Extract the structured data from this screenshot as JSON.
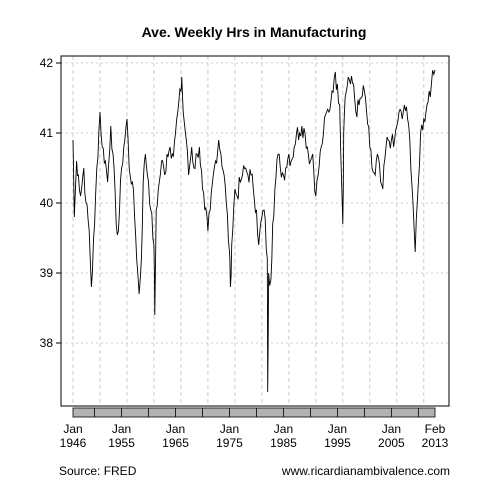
{
  "chart_data": {
    "type": "line",
    "title": "Ave. Weekly Hrs in Manufacturing",
    "xlabel": "",
    "ylabel": "",
    "x_range": [
      "1946-01",
      "2013-02"
    ],
    "ylim": [
      37.1,
      42.1
    ],
    "y_ticks": [
      "38",
      "39",
      "40",
      "41",
      "42"
    ],
    "y_tick_values": [
      38,
      39,
      40,
      41,
      42
    ],
    "x_ticks": [
      {
        "month": "Jan",
        "year": "1946",
        "x": "1946-01"
      },
      {
        "month": "Jan",
        "year": "1955",
        "x": "1955-01"
      },
      {
        "month": "Jan",
        "year": "1965",
        "x": "1965-01"
      },
      {
        "month": "Jan",
        "year": "1975",
        "x": "1975-01"
      },
      {
        "month": "Jan",
        "year": "1985",
        "x": "1985-01"
      },
      {
        "month": "Jan",
        "year": "1995",
        "x": "1995-01"
      },
      {
        "month": "Jan",
        "year": "2005",
        "x": "2005-01"
      },
      {
        "month": "Feb",
        "year": "2013",
        "x": "2013-02"
      }
    ],
    "grid": true,
    "series": [
      {
        "color": "#000000",
        "points": [
          [
            "1946-01",
            40.9
          ],
          [
            "1946-04",
            39.8
          ],
          [
            "1946-09",
            40.6
          ],
          [
            "1947-01",
            40.4
          ],
          [
            "1947-06",
            40.1
          ],
          [
            "1948-01",
            40.5
          ],
          [
            "1948-06",
            40.0
          ],
          [
            "1949-01",
            39.6
          ],
          [
            "1949-06",
            38.8
          ],
          [
            "1950-01",
            39.7
          ],
          [
            "1950-06",
            40.5
          ],
          [
            "1951-01",
            41.3
          ],
          [
            "1951-06",
            40.8
          ],
          [
            "1952-01",
            40.6
          ],
          [
            "1952-06",
            40.3
          ],
          [
            "1953-01",
            41.1
          ],
          [
            "1953-06",
            40.7
          ],
          [
            "1954-01",
            39.7
          ],
          [
            "1954-06",
            39.6
          ],
          [
            "1955-01",
            40.5
          ],
          [
            "1955-06",
            40.8
          ],
          [
            "1956-01",
            41.2
          ],
          [
            "1956-06",
            40.5
          ],
          [
            "1957-01",
            40.3
          ],
          [
            "1957-06",
            39.8
          ],
          [
            "1958-01",
            39.0
          ],
          [
            "1958-04",
            38.7
          ],
          [
            "1958-09",
            39.2
          ],
          [
            "1959-01",
            40.3
          ],
          [
            "1959-06",
            40.7
          ],
          [
            "1960-01",
            40.3
          ],
          [
            "1960-06",
            39.9
          ],
          [
            "1961-01",
            39.4
          ],
          [
            "1961-03",
            38.4
          ],
          [
            "1961-06",
            39.9
          ],
          [
            "1962-01",
            40.3
          ],
          [
            "1962-06",
            40.6
          ],
          [
            "1963-01",
            40.4
          ],
          [
            "1963-06",
            40.7
          ],
          [
            "1964-01",
            40.8
          ],
          [
            "1964-06",
            40.7
          ],
          [
            "1965-01",
            41.0
          ],
          [
            "1965-06",
            41.3
          ],
          [
            "1966-01",
            41.6
          ],
          [
            "1966-03",
            41.8
          ],
          [
            "1966-06",
            41.3
          ],
          [
            "1967-01",
            40.9
          ],
          [
            "1967-06",
            40.4
          ],
          [
            "1968-01",
            40.8
          ],
          [
            "1968-06",
            40.5
          ],
          [
            "1969-01",
            40.7
          ],
          [
            "1969-06",
            40.8
          ],
          [
            "1970-01",
            40.2
          ],
          [
            "1970-06",
            39.9
          ],
          [
            "1971-01",
            39.6
          ],
          [
            "1971-06",
            39.9
          ],
          [
            "1972-01",
            40.4
          ],
          [
            "1972-06",
            40.6
          ],
          [
            "1973-01",
            40.9
          ],
          [
            "1973-06",
            40.7
          ],
          [
            "1974-01",
            40.4
          ],
          [
            "1974-06",
            40.0
          ],
          [
            "1975-01",
            39.3
          ],
          [
            "1975-03",
            38.8
          ],
          [
            "1975-06",
            39.4
          ],
          [
            "1976-01",
            40.2
          ],
          [
            "1976-06",
            40.1
          ],
          [
            "1977-01",
            40.3
          ],
          [
            "1977-06",
            40.4
          ],
          [
            "1978-01",
            40.5
          ],
          [
            "1978-06",
            40.4
          ],
          [
            "1979-01",
            40.4
          ],
          [
            "1979-06",
            40.2
          ],
          [
            "1980-01",
            39.9
          ],
          [
            "1980-06",
            39.4
          ],
          [
            "1981-01",
            39.8
          ],
          [
            "1981-06",
            39.9
          ],
          [
            "1982-01",
            39.2
          ],
          [
            "1982-02",
            37.3
          ],
          [
            "1982-04",
            39.0
          ],
          [
            "1982-09",
            38.9
          ],
          [
            "1983-01",
            39.7
          ],
          [
            "1983-06",
            40.2
          ],
          [
            "1984-01",
            40.7
          ],
          [
            "1984-06",
            40.5
          ],
          [
            "1985-01",
            40.4
          ],
          [
            "1985-06",
            40.5
          ],
          [
            "1986-01",
            40.7
          ],
          [
            "1986-06",
            40.6
          ],
          [
            "1987-01",
            40.8
          ],
          [
            "1987-06",
            41.0
          ],
          [
            "1988-01",
            41.0
          ],
          [
            "1988-06",
            41.1
          ],
          [
            "1989-01",
            41.0
          ],
          [
            "1989-06",
            40.8
          ],
          [
            "1990-01",
            40.6
          ],
          [
            "1990-06",
            40.7
          ],
          [
            "1991-01",
            40.1
          ],
          [
            "1991-06",
            40.4
          ],
          [
            "1992-01",
            40.8
          ],
          [
            "1992-06",
            41.0
          ],
          [
            "1993-01",
            41.3
          ],
          [
            "1993-06",
            41.3
          ],
          [
            "1994-01",
            41.6
          ],
          [
            "1994-06",
            41.8
          ],
          [
            "1995-01",
            41.7
          ],
          [
            "1995-06",
            41.4
          ],
          [
            "1996-01",
            39.7
          ],
          [
            "1996-03",
            41.0
          ],
          [
            "1996-06",
            41.5
          ],
          [
            "1997-01",
            41.8
          ],
          [
            "1997-06",
            41.7
          ],
          [
            "1998-01",
            41.7
          ],
          [
            "1998-06",
            41.3
          ],
          [
            "1999-01",
            41.4
          ],
          [
            "1999-06",
            41.5
          ],
          [
            "2000-01",
            41.6
          ],
          [
            "2000-06",
            41.3
          ],
          [
            "2001-01",
            40.8
          ],
          [
            "2001-06",
            40.5
          ],
          [
            "2002-01",
            40.4
          ],
          [
            "2002-06",
            40.7
          ],
          [
            "2003-01",
            40.3
          ],
          [
            "2003-06",
            40.2
          ],
          [
            "2004-01",
            40.8
          ],
          [
            "2004-06",
            40.9
          ],
          [
            "2005-01",
            40.9
          ],
          [
            "2005-06",
            40.8
          ],
          [
            "2006-01",
            41.1
          ],
          [
            "2006-06",
            41.3
          ],
          [
            "2007-01",
            41.2
          ],
          [
            "2007-06",
            41.4
          ],
          [
            "2008-01",
            41.2
          ],
          [
            "2008-06",
            40.9
          ],
          [
            "2009-01",
            40.0
          ],
          [
            "2009-06",
            39.3
          ],
          [
            "2010-01",
            40.3
          ],
          [
            "2010-06",
            41.0
          ],
          [
            "2011-01",
            41.2
          ],
          [
            "2011-06",
            41.3
          ],
          [
            "2012-01",
            41.6
          ],
          [
            "2012-06",
            41.7
          ],
          [
            "2013-02",
            41.9
          ]
        ]
      }
    ]
  },
  "footer": {
    "source": "Source: FRED",
    "credit": "www.ricardianambivalence.com"
  }
}
